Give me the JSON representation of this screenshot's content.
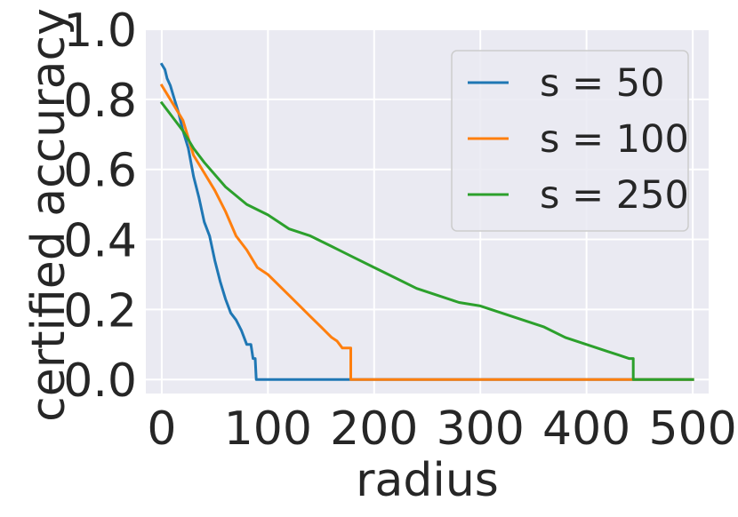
{
  "chart_data": {
    "type": "line",
    "xlabel": "radius",
    "ylabel": "certified accuracy",
    "xlim": [
      -15,
      515
    ],
    "ylim": [
      -0.04,
      1.0
    ],
    "xticks": [
      0,
      100,
      200,
      300,
      400,
      500
    ],
    "yticks": [
      0.0,
      0.2,
      0.4,
      0.6,
      0.8,
      1.0
    ],
    "ytick_labels": [
      "0.0",
      "0.2",
      "0.4",
      "0.6",
      "0.8",
      "1.0"
    ],
    "grid": true,
    "background": "#eaeaf2",
    "legend_position": "top-right",
    "series": [
      {
        "name": "s = 50",
        "color": "#1f77b4",
        "x": [
          0,
          3,
          5,
          8,
          12,
          16,
          20,
          25,
          30,
          35,
          40,
          45,
          50,
          55,
          60,
          65,
          70,
          75,
          80,
          84,
          86,
          88,
          89,
          89,
          500
        ],
        "y": [
          0.9,
          0.885,
          0.86,
          0.84,
          0.8,
          0.76,
          0.71,
          0.66,
          0.58,
          0.52,
          0.45,
          0.41,
          0.34,
          0.28,
          0.23,
          0.19,
          0.17,
          0.14,
          0.1,
          0.1,
          0.06,
          0.06,
          0.0,
          0.0,
          0.0
        ]
      },
      {
        "name": "s = 100",
        "color": "#ff7f0e",
        "x": [
          0,
          10,
          20,
          30,
          40,
          50,
          60,
          70,
          80,
          90,
          100,
          110,
          120,
          130,
          140,
          150,
          160,
          165,
          170,
          176,
          178,
          178,
          500
        ],
        "y": [
          0.84,
          0.79,
          0.74,
          0.64,
          0.59,
          0.54,
          0.48,
          0.41,
          0.37,
          0.32,
          0.3,
          0.27,
          0.24,
          0.21,
          0.18,
          0.15,
          0.12,
          0.11,
          0.09,
          0.09,
          0.09,
          0.0,
          0.0
        ]
      },
      {
        "name": "s = 250",
        "color": "#2ca02c",
        "x": [
          0,
          10,
          20,
          30,
          40,
          60,
          80,
          100,
          120,
          140,
          160,
          180,
          200,
          220,
          240,
          260,
          280,
          300,
          320,
          340,
          360,
          380,
          400,
          420,
          430,
          440,
          444,
          444,
          500
        ],
        "y": [
          0.79,
          0.75,
          0.71,
          0.66,
          0.62,
          0.55,
          0.5,
          0.47,
          0.43,
          0.41,
          0.38,
          0.35,
          0.32,
          0.29,
          0.26,
          0.24,
          0.22,
          0.21,
          0.19,
          0.17,
          0.15,
          0.12,
          0.1,
          0.08,
          0.07,
          0.06,
          0.06,
          0.0,
          0.0
        ]
      }
    ]
  }
}
